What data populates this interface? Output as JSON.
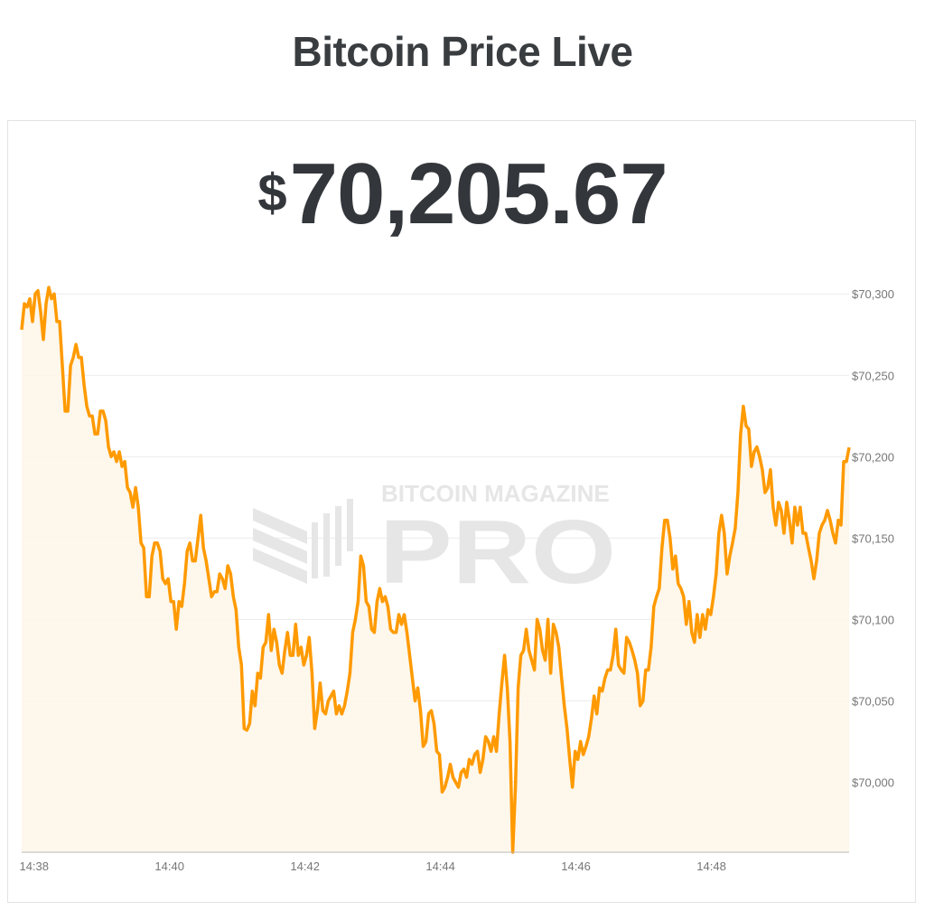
{
  "header": {
    "title": "Bitcoin Price Live"
  },
  "price": {
    "currency_symbol": "$",
    "value": "70,205.67"
  },
  "watermark": {
    "line1": "BITCOIN MAGAZINE",
    "line2": "PRO"
  },
  "colors": {
    "line": "#FF9A00",
    "fill": "#FDF6EA",
    "grid": "#EBEBEB",
    "text": "#33373B"
  },
  "chart_data": {
    "type": "area",
    "title": "",
    "xlabel": "",
    "ylabel": "",
    "time_start": "14:37:49",
    "time_end": "14:50:02",
    "x_ticks": [
      "14:38",
      "14:40",
      "14:42",
      "14:44",
      "14:46",
      "14:48"
    ],
    "y_ticks": [
      70000,
      70050,
      70100,
      70150,
      70200,
      70250,
      70300
    ],
    "y_tick_labels": [
      "$70,000",
      "$70,050",
      "$70,100",
      "$70,150",
      "$70,200",
      "$70,250",
      "$70,300"
    ],
    "ylim": [
      69957,
      70314
    ],
    "y_axis_position": "right",
    "grid": true,
    "values": [
      70278,
      70294,
      70292,
      70297,
      70283,
      70300,
      70302,
      70289,
      70272,
      70294,
      70304,
      70297,
      70300,
      70283,
      70283,
      70256,
      70228,
      70228,
      70256,
      70261,
      70269,
      70261,
      70261,
      70244,
      70231,
      70225,
      70225,
      70214,
      70214,
      70228,
      70228,
      70222,
      70206,
      70200,
      70203,
      70197,
      70203,
      70194,
      70197,
      70181,
      70178,
      70169,
      70181,
      70169,
      70147,
      70144,
      70114,
      70114,
      70139,
      70147,
      70147,
      70142,
      70125,
      70122,
      70125,
      70111,
      70111,
      70094,
      70111,
      70108,
      70122,
      70142,
      70147,
      70136,
      70136,
      70150,
      70164,
      70144,
      70136,
      70125,
      70114,
      70117,
      70117,
      70128,
      70125,
      70119,
      70133,
      70128,
      70114,
      70106,
      70083,
      70072,
      70033,
      70032,
      70036,
      70056,
      70047,
      70067,
      70064,
      70083,
      70086,
      70103,
      70081,
      70094,
      70086,
      70072,
      70067,
      70081,
      70092,
      70078,
      70078,
      70097,
      70078,
      70083,
      70072,
      70078,
      70089,
      70067,
      70033,
      70044,
      70061,
      70044,
      70042,
      70050,
      70053,
      70056,
      70042,
      70047,
      70042,
      70047,
      70056,
      70067,
      70092,
      70100,
      70111,
      70139,
      70133,
      70111,
      70108,
      70094,
      70092,
      70111,
      70119,
      70111,
      70114,
      70108,
      70094,
      70092,
      70092,
      70103,
      70097,
      70103,
      70092,
      70078,
      70064,
      70050,
      70058,
      70044,
      70022,
      70025,
      70042,
      70044,
      70036,
      70019,
      70017,
      69994,
      69997,
      70003,
      70011,
      70003,
      70000,
      69997,
      70006,
      70008,
      70003,
      70014,
      70011,
      70017,
      70019,
      70006,
      70014,
      70028,
      70025,
      70019,
      70028,
      70019,
      70042,
      70061,
      70078,
      70058,
      70025,
      69957,
      69997,
      70058,
      70078,
      70081,
      70094,
      70081,
      70075,
      70069,
      70100,
      70094,
      70081,
      70075,
      70100,
      70067,
      70097,
      70092,
      70083,
      70064,
      70047,
      70033,
      70014,
      69997,
      70019,
      70014,
      70025,
      70017,
      70022,
      70028,
      70039,
      70053,
      70042,
      70058,
      70056,
      70064,
      70069,
      70069,
      70078,
      70094,
      70072,
      70069,
      70067,
      70089,
      70086,
      70081,
      70075,
      70067,
      70047,
      70050,
      70069,
      70069,
      70083,
      70108,
      70114,
      70119,
      70144,
      70161,
      70161,
      70150,
      70131,
      70139,
      70122,
      70119,
      70114,
      70097,
      70111,
      70092,
      70086,
      70103,
      70089,
      70103,
      70094,
      70106,
      70103,
      70114,
      70128,
      70153,
      70164,
      70153,
      70128,
      70139,
      70147,
      70156,
      70178,
      70214,
      70231,
      70219,
      70217,
      70194,
      70203,
      70206,
      70200,
      70192,
      70178,
      70181,
      70192,
      70169,
      70158,
      70172,
      70167,
      70153,
      70172,
      70161,
      70147,
      70169,
      70158,
      70169,
      70153,
      70153,
      70144,
      70136,
      70125,
      70136,
      70153,
      70158,
      70161,
      70167,
      70161,
      70153,
      70147,
      70161,
      70158,
      70197,
      70197,
      70205.67
    ]
  }
}
